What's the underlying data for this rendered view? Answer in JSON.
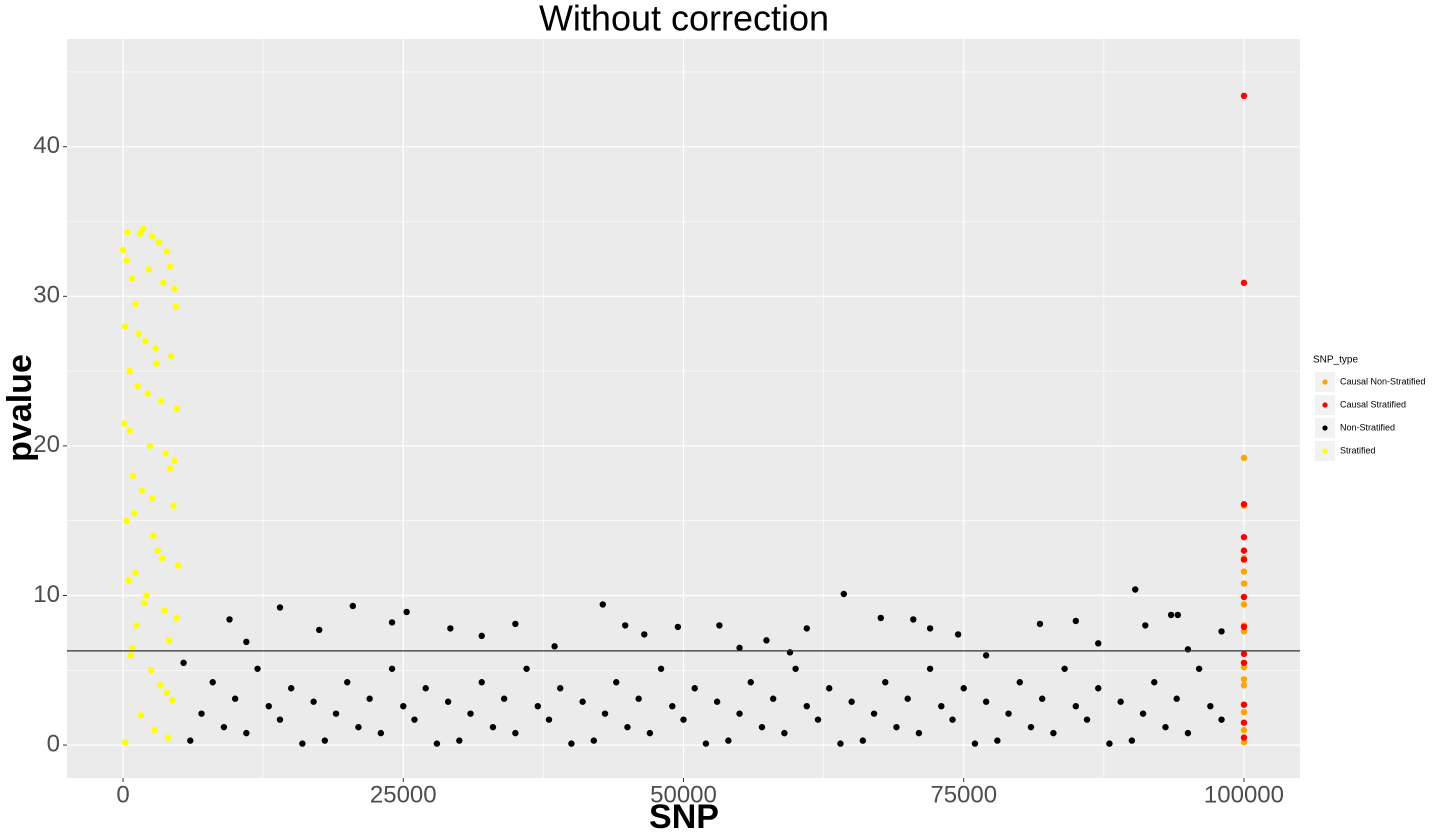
{
  "chart_data": {
    "type": "scatter",
    "title": "Without correction",
    "x_label": "SNP",
    "y_label": "pvalue",
    "xlim": [
      -5000,
      105000
    ],
    "ylim": [
      -2.2,
      47.2
    ],
    "xticks": [
      0,
      25000,
      50000,
      75000,
      100000
    ],
    "yticks": [
      0,
      10,
      20,
      30,
      40
    ],
    "minor_xticks": [
      12500,
      37500,
      62500,
      87500
    ],
    "minor_yticks": [
      5,
      15,
      25,
      35,
      45
    ],
    "grid": true,
    "hline": 6.3,
    "legend_title": "SNP_type",
    "legend_position": "right",
    "series": [
      {
        "name": "Causal Non-Stratified",
        "color": "#FFA500",
        "x": [
          100000,
          100000,
          100000,
          100000,
          100000,
          100000,
          100000,
          100000,
          100000,
          100000,
          100000,
          100000,
          100000,
          100000
        ],
        "values": [
          19.2,
          16.0,
          12.5,
          11.6,
          10.8,
          9.4,
          8.0,
          7.6,
          5.2,
          4.4,
          4.0,
          2.2,
          1.0,
          0.2
        ]
      },
      {
        "name": "Causal Stratified",
        "color": "#FF0000",
        "x": [
          100000,
          100000,
          100000,
          100000,
          100000,
          100000,
          100000,
          100000,
          100000,
          100000,
          100000,
          100000,
          100000
        ],
        "values": [
          43.4,
          30.9,
          16.1,
          13.9,
          13.0,
          12.4,
          9.9,
          7.9,
          6.1,
          5.5,
          2.7,
          1.5,
          0.5
        ]
      },
      {
        "name": "Non-Stratified",
        "color": "#000000",
        "x": [
          6000,
          7000,
          8000,
          9000,
          10000,
          11000,
          12000,
          13000,
          14000,
          15000,
          16000,
          17000,
          18000,
          19000,
          20000,
          21000,
          22000,
          23000,
          24000,
          25000,
          26000,
          27000,
          28000,
          29000,
          30000,
          31000,
          32000,
          33000,
          34000,
          35000,
          36000,
          37000,
          38000,
          39000,
          40000,
          41000,
          42000,
          43000,
          44000,
          45000,
          46000,
          47000,
          48000,
          49000,
          50000,
          51000,
          52000,
          53000,
          54000,
          55000,
          56000,
          57000,
          58000,
          59000,
          60000,
          61000,
          62000,
          63000,
          64000,
          65000,
          66000,
          67000,
          68000,
          69000,
          70000,
          71000,
          72000,
          73000,
          74000,
          75000,
          76000,
          77000,
          78000,
          79000,
          80000,
          81000,
          82000,
          83000,
          84000,
          85000,
          86000,
          87000,
          88000,
          89000,
          90000,
          91000,
          92000,
          93000,
          94000,
          95000,
          96000,
          97000,
          98000,
          5400,
          9500,
          14000,
          20500,
          25300,
          24000,
          29200,
          32000,
          35000,
          42800,
          44800,
          46500,
          49500,
          53200,
          57400,
          61000,
          64300,
          67600,
          70500,
          72000,
          74500,
          81800,
          85000,
          87000,
          90300,
          91200,
          93500,
          94100,
          98000,
          17500,
          11000,
          38500,
          55000,
          59500,
          77000,
          95000
        ],
        "values": [
          0.3,
          2.1,
          4.2,
          1.2,
          3.1,
          0.8,
          5.1,
          2.6,
          1.7,
          3.8,
          0.1,
          2.9,
          0.3,
          2.1,
          4.2,
          1.2,
          3.1,
          0.8,
          5.1,
          2.6,
          1.7,
          3.8,
          0.1,
          2.9,
          0.3,
          2.1,
          4.2,
          1.2,
          3.1,
          0.8,
          5.1,
          2.6,
          1.7,
          3.8,
          0.1,
          2.9,
          0.3,
          2.1,
          4.2,
          1.2,
          3.1,
          0.8,
          5.1,
          2.6,
          1.7,
          3.8,
          0.1,
          2.9,
          0.3,
          2.1,
          4.2,
          1.2,
          3.1,
          0.8,
          5.1,
          2.6,
          1.7,
          3.8,
          0.1,
          2.9,
          0.3,
          2.1,
          4.2,
          1.2,
          3.1,
          0.8,
          5.1,
          2.6,
          1.7,
          3.8,
          0.1,
          2.9,
          0.3,
          2.1,
          4.2,
          1.2,
          3.1,
          0.8,
          5.1,
          2.6,
          1.7,
          3.8,
          0.1,
          2.9,
          0.3,
          2.1,
          4.2,
          1.2,
          3.1,
          0.8,
          5.1,
          2.6,
          1.7,
          5.5,
          8.4,
          9.2,
          9.3,
          8.9,
          8.2,
          7.8,
          7.3,
          8.1,
          9.4,
          8.0,
          7.4,
          7.9,
          8.0,
          7.0,
          7.8,
          10.1,
          8.5,
          8.4,
          7.8,
          7.4,
          8.1,
          8.3,
          6.8,
          10.4,
          8.0,
          8.7,
          8.7,
          7.6,
          7.7,
          6.9,
          6.6,
          6.5,
          6.2,
          6.0,
          6.4
        ]
      },
      {
        "name": "Stratified",
        "color": "#FFFF00",
        "x": [
          0,
          400,
          1500,
          1800,
          2600,
          3200,
          3900,
          4200,
          300,
          800,
          2300,
          4600,
          1100,
          3600,
          4700,
          200,
          2000,
          2900,
          4300,
          600,
          1300,
          3400,
          4800,
          100,
          2400,
          3800,
          900,
          1700,
          4500,
          300,
          2700,
          3100,
          4900,
          500,
          2100,
          3700,
          1200,
          4100,
          700,
          2500,
          3300,
          4400,
          1600,
          2800,
          4000,
          200,
          1900,
          3500,
          1000,
          4200,
          600,
          2200,
          3000,
          1400,
          4600,
          800,
          3900,
          1100,
          2600,
          4800
        ],
        "values": [
          33.1,
          34.3,
          34.2,
          34.5,
          34.0,
          33.6,
          33.0,
          32.0,
          32.4,
          31.2,
          31.8,
          30.5,
          29.5,
          30.9,
          29.3,
          28.0,
          27.0,
          26.5,
          26.0,
          25.0,
          24.0,
          23.0,
          22.5,
          21.5,
          20.0,
          19.5,
          18.0,
          17.0,
          16.0,
          15.0,
          14.0,
          13.0,
          12.0,
          11.0,
          10.0,
          9.0,
          8.0,
          7.0,
          6.0,
          5.0,
          4.0,
          3.0,
          2.0,
          1.0,
          0.5,
          0.2,
          9.5,
          12.5,
          15.5,
          18.5,
          21.0,
          23.5,
          25.5,
          27.5,
          19.0,
          6.5,
          3.5,
          11.5,
          16.5,
          8.5
        ]
      }
    ]
  }
}
